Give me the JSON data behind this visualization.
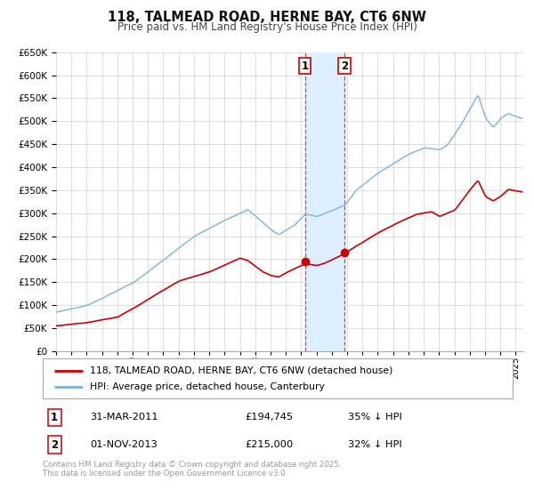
{
  "title": "118, TALMEAD ROAD, HERNE BAY, CT6 6NW",
  "subtitle": "Price paid vs. HM Land Registry's House Price Index (HPI)",
  "legend_line1": "118, TALMEAD ROAD, HERNE BAY, CT6 6NW (detached house)",
  "legend_line2": "HPI: Average price, detached house, Canterbury",
  "marker1_date_label": "31-MAR-2011",
  "marker1_price": "£194,745",
  "marker1_hpi": "35% ↓ HPI",
  "marker2_date_label": "01-NOV-2013",
  "marker2_price": "£215,000",
  "marker2_hpi": "32% ↓ HPI",
  "marker1_x": 2011.25,
  "marker2_x": 2013.83,
  "marker1_y": 194745,
  "marker2_y": 215000,
  "hpi_color": "#7ab4d8",
  "price_color": "#cc0000",
  "shade_color": "#ddeeff",
  "ylim": [
    0,
    650000
  ],
  "xlim": [
    1995,
    2025.5
  ],
  "footnote": "Contains HM Land Registry data © Crown copyright and database right 2025.\nThis data is licensed under the Open Government Licence v3.0.",
  "background_color": "#ffffff",
  "grid_color": "#d8d8d8"
}
